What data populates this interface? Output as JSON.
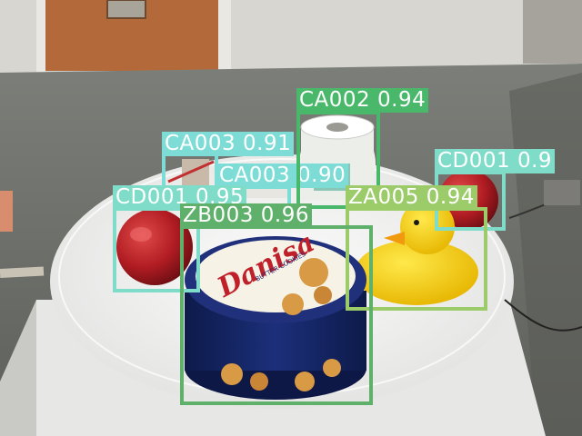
{
  "colors": {
    "ZB003": "#5fb06a",
    "CA002": "#4ab86a",
    "CA003": "#7edcd6",
    "CD001": "#7edcc9",
    "ZA005": "#9ccc6a"
  },
  "detections": [
    {
      "class": "CA003",
      "score": "0.91",
      "label": "CA003 0.91"
    },
    {
      "class": "CA003",
      "score": "0.90",
      "label": "CA003 0.90"
    },
    {
      "class": "CA002",
      "score": "0.94",
      "label": "CA002 0.94"
    },
    {
      "class": "CD001",
      "score": "0.9",
      "label": "CD001 0.9"
    },
    {
      "class": "CD001",
      "score": "0.95",
      "label": "CD001 0.95"
    },
    {
      "class": "ZA005",
      "score": "0.94",
      "label": "ZA005 0.94"
    },
    {
      "class": "ZB003",
      "score": "0.96",
      "label": "ZB003 0.96"
    }
  ],
  "objects": {
    "tin_brand": "Danisa",
    "tin_subtitle": "BUTTER COOKIES"
  }
}
